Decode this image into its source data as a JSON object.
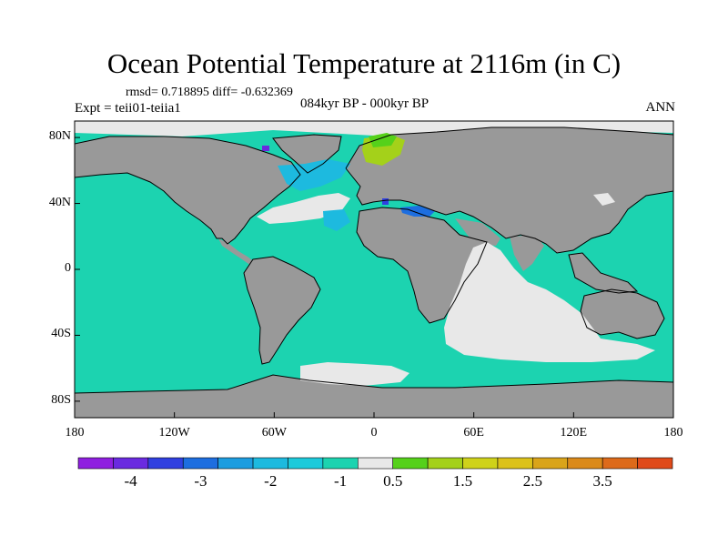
{
  "title": "Ocean Potential Temperature at 2116m (in C)",
  "stats": "rmsd= 0.718895 diff= -0.632369",
  "experiment": "Expt = teii01-teiia1",
  "period": "084kyr BP - 000kyr BP",
  "season": "ANN",
  "map": {
    "lat_range": [
      -90,
      90
    ],
    "lon_range": [
      -180,
      180
    ],
    "lat_ticks": [
      {
        "value": 80,
        "label": "80N"
      },
      {
        "value": 40,
        "label": "40N"
      },
      {
        "value": 0,
        "label": "0"
      },
      {
        "value": -40,
        "label": "40S"
      },
      {
        "value": -80,
        "label": "80S"
      }
    ],
    "lon_ticks": [
      {
        "value": -180,
        "label": "180"
      },
      {
        "value": -120,
        "label": "120W"
      },
      {
        "value": -60,
        "label": "60W"
      },
      {
        "value": 0,
        "label": "0"
      },
      {
        "value": 60,
        "label": "60E"
      },
      {
        "value": 120,
        "label": "120E"
      },
      {
        "value": 180,
        "label": "180"
      }
    ],
    "colors": {
      "land": "#999999",
      "ocean_default": "#1cd3b0",
      "near_zero": "#e8e8e8",
      "coastline": "#000000"
    }
  },
  "colorbar": {
    "colors": [
      "#8f1fe0",
      "#6a2ae0",
      "#3040e0",
      "#1d6ee0",
      "#1c9de0",
      "#1dbadf",
      "#1ccadb",
      "#1cd3b0",
      "#e8e8e8",
      "#55d11a",
      "#a4d11a",
      "#cfd21a",
      "#dcc21a",
      "#d9a41a",
      "#db8a1a",
      "#dd6a1a",
      "#e04a1a"
    ],
    "labels": [
      {
        "value": -4,
        "label": "-4"
      },
      {
        "value": -3,
        "label": "-3"
      },
      {
        "value": -2,
        "label": "-2"
      },
      {
        "value": -1,
        "label": "-1"
      },
      {
        "value": 0.5,
        "label": "0.5"
      },
      {
        "value": 1.5,
        "label": "1.5"
      },
      {
        "value": 2.5,
        "label": "2.5"
      },
      {
        "value": 3.5,
        "label": "3.5"
      }
    ]
  }
}
